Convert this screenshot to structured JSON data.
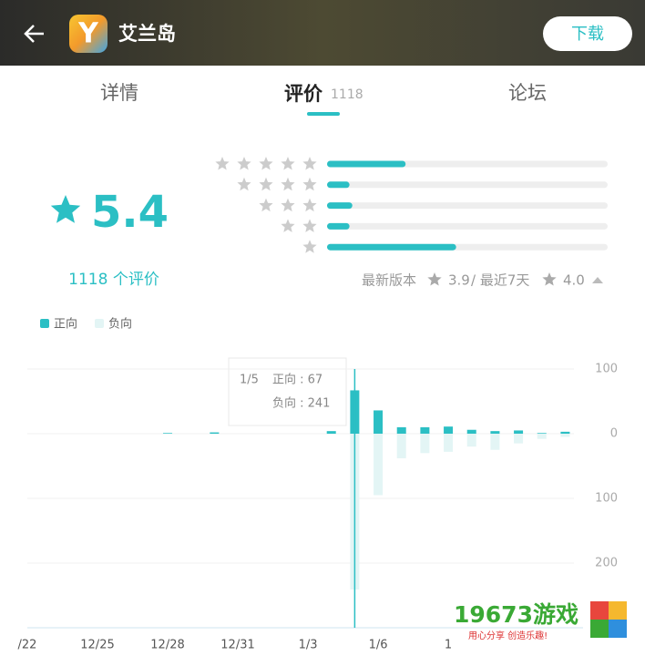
{
  "header": {
    "title": "艾兰岛",
    "button": "下载"
  },
  "tabs": [
    {
      "label": "详情"
    },
    {
      "label": "评价",
      "count": "1118"
    },
    {
      "label": "论坛"
    }
  ],
  "rating": {
    "score": 5.4,
    "count_label": "1118 个评价",
    "distribution": [
      0.28,
      0.08,
      0.09,
      0.08,
      0.46
    ],
    "latest_version_label": "最新版本",
    "latest_version_score": "3.9",
    "recent_label": "/ 最近7天",
    "recent_score": "4.0"
  },
  "chart_data": {
    "type": "bar",
    "categories": [
      "/22",
      null,
      null,
      "12/25",
      null,
      null,
      "12/28",
      null,
      null,
      "12/31",
      null,
      null,
      "1/3",
      null,
      null,
      "1/6",
      null,
      null,
      "1",
      null,
      null,
      null,
      null,
      null
    ],
    "series": [
      {
        "name": "正向",
        "color": "#2bbfc4",
        "values": [
          0,
          0,
          0,
          0,
          0,
          0,
          1,
          0,
          2,
          0,
          0,
          0,
          0,
          4,
          67,
          36,
          10,
          10,
          11,
          6,
          4,
          5,
          1,
          3
        ]
      },
      {
        "name": "负向",
        "color": "#e3f5f5",
        "values": [
          0,
          0,
          0,
          0,
          0,
          0,
          0,
          0,
          0,
          0,
          0,
          0,
          0,
          -1,
          -241,
          -95,
          -38,
          -30,
          -28,
          -20,
          -25,
          -15,
          -8,
          -5
        ]
      }
    ],
    "ylim": [
      -300,
      100
    ],
    "yticks": [
      100,
      0,
      {
        "value": -100,
        "label": "100"
      },
      {
        "value": -200,
        "label": "200"
      }
    ],
    "grid": true,
    "tooltip": {
      "title": "1/5",
      "lines": [
        "正向 : 67",
        "负向 : 241"
      ]
    }
  },
  "watermark": {
    "text": "19673游戏",
    "slogan": "用心分享 创造乐趣!"
  }
}
